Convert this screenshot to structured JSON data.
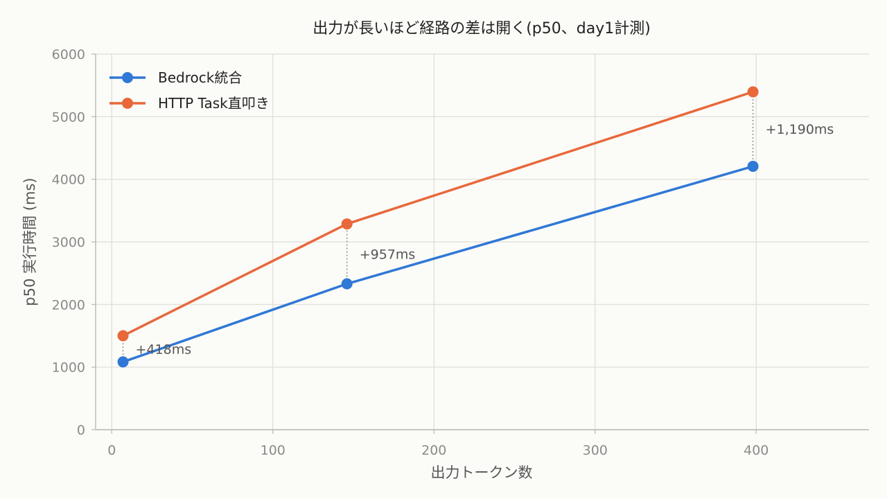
{
  "chart_data": {
    "type": "line",
    "title": "出力が長いほど経路の差は開く(p50、day1計測)",
    "xlabel": "出力トークン数",
    "ylabel": "p50 実行時間 (ms)",
    "xlim": [
      -10,
      470
    ],
    "ylim": [
      0,
      6000
    ],
    "x_ticks": [
      0,
      100,
      200,
      300,
      400
    ],
    "y_ticks": [
      0,
      1000,
      2000,
      3000,
      4000,
      5000,
      6000
    ],
    "grid": true,
    "legend_position": "top-left",
    "series": [
      {
        "name": "Bedrock統合",
        "color": "#2f78d6",
        "points": [
          {
            "x": 7,
            "y": 1083
          },
          {
            "x": 146,
            "y": 2330
          },
          {
            "x": 398,
            "y": 4207
          }
        ]
      },
      {
        "name": "HTTP Task直叩き",
        "color": "#e8683a",
        "points": [
          {
            "x": 7,
            "y": 1501
          },
          {
            "x": 146,
            "y": 3287
          },
          {
            "x": 398,
            "y": 5397
          }
        ]
      }
    ],
    "annotations": [
      {
        "x": 7,
        "text": "+418ms"
      },
      {
        "x": 146,
        "text": "+957ms"
      },
      {
        "x": 398,
        "text": "+1,190ms"
      }
    ]
  }
}
